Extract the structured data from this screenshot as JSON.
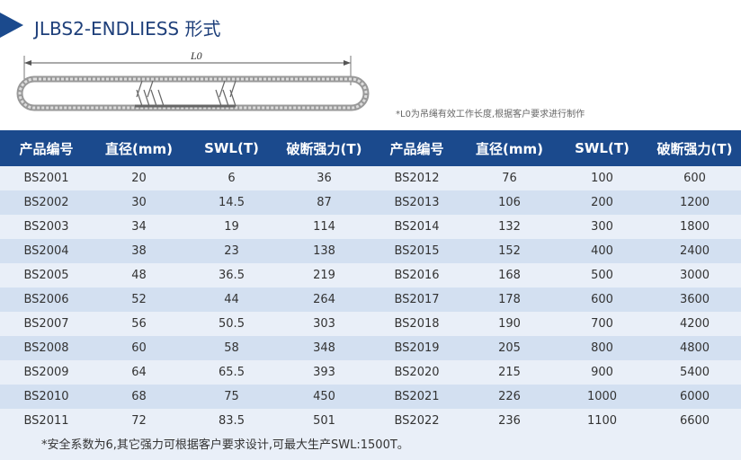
{
  "header": {
    "title": "JLBS2-ENDLIESS 形式"
  },
  "diagram": {
    "label": "L0",
    "note": "*L0为吊绳有效工作长度,根据客户要求进行制作"
  },
  "table": {
    "columns": [
      "产品编号",
      "直径(mm)",
      "SWL(T)",
      "破断强力(T)",
      "产品编号",
      "直径(mm)",
      "SWL(T)",
      "破断强力(T)"
    ],
    "rows": [
      [
        "BS2001",
        "20",
        "6",
        "36",
        "BS2012",
        "76",
        "100",
        "600"
      ],
      [
        "BS2002",
        "30",
        "14.5",
        "87",
        "BS2013",
        "106",
        "200",
        "1200"
      ],
      [
        "BS2003",
        "34",
        "19",
        "114",
        "BS2014",
        "132",
        "300",
        "1800"
      ],
      [
        "BS2004",
        "38",
        "23",
        "138",
        "BS2015",
        "152",
        "400",
        "2400"
      ],
      [
        "BS2005",
        "48",
        "36.5",
        "219",
        "BS2016",
        "168",
        "500",
        "3000"
      ],
      [
        "BS2006",
        "52",
        "44",
        "264",
        "BS2017",
        "178",
        "600",
        "3600"
      ],
      [
        "BS2007",
        "56",
        "50.5",
        "303",
        "BS2018",
        "190",
        "700",
        "4200"
      ],
      [
        "BS2008",
        "60",
        "58",
        "348",
        "BS2019",
        "205",
        "800",
        "4800"
      ],
      [
        "BS2009",
        "64",
        "65.5",
        "393",
        "BS2020",
        "215",
        "900",
        "5400"
      ],
      [
        "BS2010",
        "68",
        "75",
        "450",
        "BS2021",
        "226",
        "1000",
        "6000"
      ],
      [
        "BS2011",
        "72",
        "83.5",
        "501",
        "BS2022",
        "236",
        "1100",
        "6600"
      ]
    ]
  },
  "footnote": "*安全系数为6,其它强力可根据客户要求设计,可最大生产SWL:1500T。"
}
